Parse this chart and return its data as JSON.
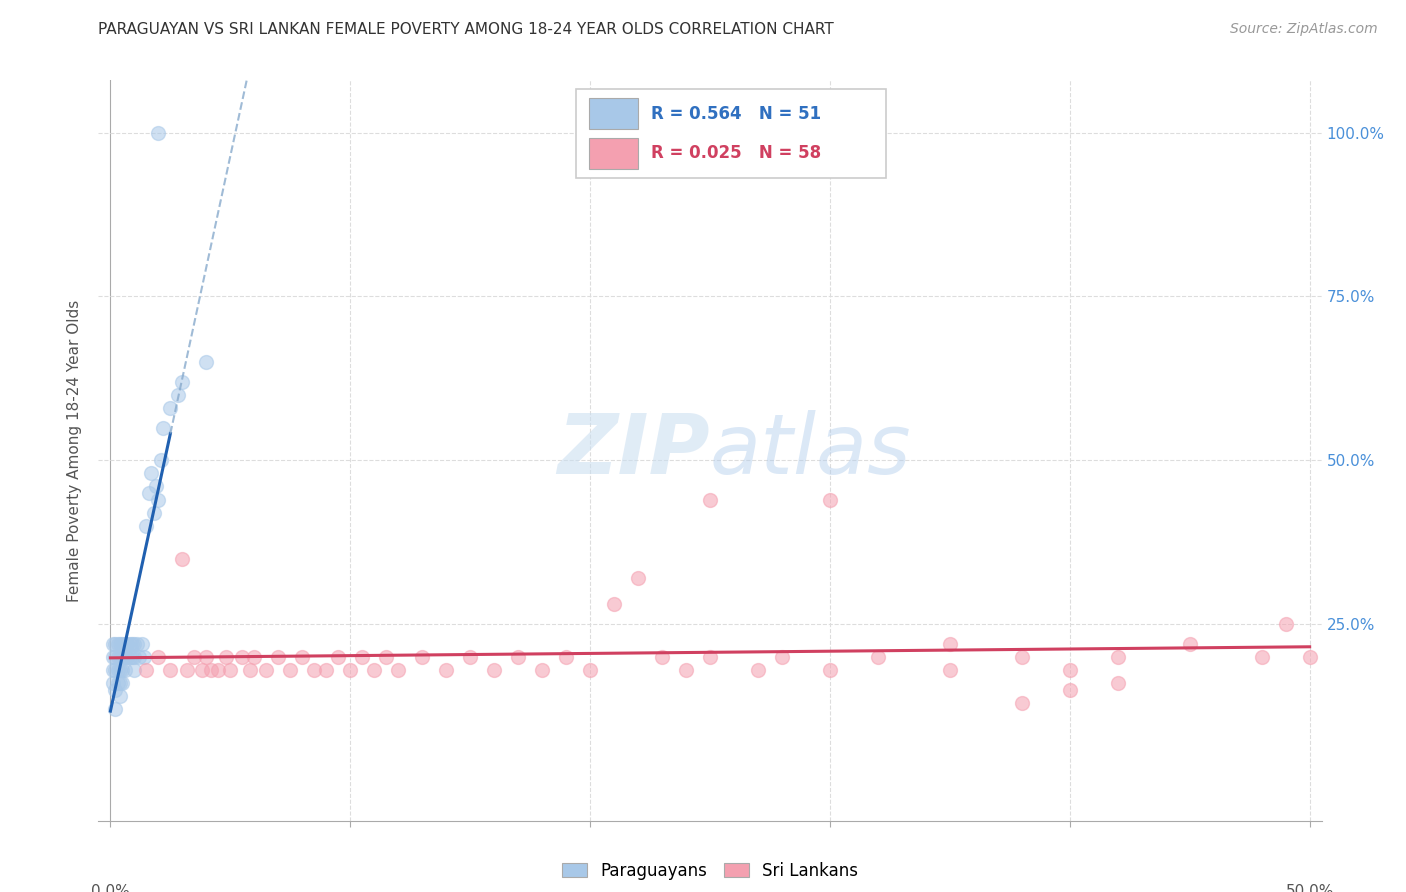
{
  "title": "PARAGUAYAN VS SRI LANKAN FEMALE POVERTY AMONG 18-24 YEAR OLDS CORRELATION CHART",
  "source": "Source: ZipAtlas.com",
  "ylabel": "Female Poverty Among 18-24 Year Olds",
  "xlim": [
    -0.005,
    0.505
  ],
  "ylim": [
    -0.05,
    1.08
  ],
  "blue_color": "#a8c8e8",
  "pink_color": "#f4a0b0",
  "regression_blue_color": "#2060b0",
  "regression_pink_color": "#d04060",
  "watermark_zip": "ZIP",
  "watermark_atlas": "atlas",
  "paraguayan_x": [
    0.001,
    0.001,
    0.001,
    0.001,
    0.002,
    0.002,
    0.002,
    0.002,
    0.002,
    0.003,
    0.003,
    0.003,
    0.003,
    0.004,
    0.004,
    0.004,
    0.004,
    0.004,
    0.005,
    0.005,
    0.005,
    0.005,
    0.006,
    0.006,
    0.006,
    0.007,
    0.007,
    0.008,
    0.008,
    0.009,
    0.009,
    0.01,
    0.01,
    0.01,
    0.011,
    0.012,
    0.013,
    0.014,
    0.015,
    0.016,
    0.017,
    0.018,
    0.019,
    0.02,
    0.021,
    0.022,
    0.025,
    0.028,
    0.03,
    0.04,
    0.02
  ],
  "paraguayan_y": [
    0.2,
    0.22,
    0.18,
    0.16,
    0.2,
    0.22,
    0.18,
    0.15,
    0.12,
    0.2,
    0.22,
    0.18,
    0.16,
    0.22,
    0.2,
    0.18,
    0.16,
    0.14,
    0.22,
    0.2,
    0.18,
    0.16,
    0.22,
    0.2,
    0.18,
    0.22,
    0.2,
    0.22,
    0.2,
    0.22,
    0.2,
    0.22,
    0.2,
    0.18,
    0.22,
    0.2,
    0.22,
    0.2,
    0.4,
    0.45,
    0.48,
    0.42,
    0.46,
    0.44,
    0.5,
    0.55,
    0.58,
    0.6,
    0.62,
    0.65,
    1.0
  ],
  "srilankans_x": [
    0.015,
    0.02,
    0.025,
    0.03,
    0.032,
    0.035,
    0.038,
    0.04,
    0.042,
    0.045,
    0.048,
    0.05,
    0.055,
    0.058,
    0.06,
    0.065,
    0.07,
    0.075,
    0.08,
    0.085,
    0.09,
    0.095,
    0.1,
    0.105,
    0.11,
    0.115,
    0.12,
    0.13,
    0.14,
    0.15,
    0.16,
    0.17,
    0.18,
    0.19,
    0.2,
    0.21,
    0.22,
    0.23,
    0.24,
    0.25,
    0.27,
    0.28,
    0.3,
    0.32,
    0.35,
    0.38,
    0.4,
    0.42,
    0.45,
    0.48,
    0.49,
    0.5,
    0.25,
    0.3,
    0.35,
    0.4,
    0.42,
    0.38
  ],
  "srilankans_y": [
    0.18,
    0.2,
    0.18,
    0.35,
    0.18,
    0.2,
    0.18,
    0.2,
    0.18,
    0.18,
    0.2,
    0.18,
    0.2,
    0.18,
    0.2,
    0.18,
    0.2,
    0.18,
    0.2,
    0.18,
    0.18,
    0.2,
    0.18,
    0.2,
    0.18,
    0.2,
    0.18,
    0.2,
    0.18,
    0.2,
    0.18,
    0.2,
    0.18,
    0.2,
    0.18,
    0.28,
    0.32,
    0.2,
    0.18,
    0.2,
    0.18,
    0.2,
    0.18,
    0.2,
    0.18,
    0.2,
    0.18,
    0.2,
    0.22,
    0.2,
    0.25,
    0.2,
    0.44,
    0.44,
    0.22,
    0.15,
    0.16,
    0.13
  ],
  "legend_blue_R": "R = 0.564",
  "legend_blue_N": "N = 51",
  "legend_pink_R": "R = 0.025",
  "legend_pink_N": "N = 58"
}
